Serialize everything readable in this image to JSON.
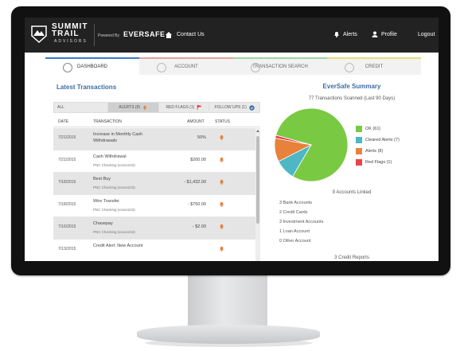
{
  "header": {
    "logo_line1": "SUMMIT",
    "logo_line2": "TRAIL",
    "logo_line3": "ADVISORS",
    "powered_by": "Powered By",
    "brand": "EVERSAFE",
    "contact_us": "Contact Us",
    "alerts": "Alerts",
    "profile": "Profile",
    "logout": "Logout"
  },
  "tabs": [
    {
      "label": "DASHBOARD",
      "icon": "dashboard-icon",
      "active": true
    },
    {
      "label": "ACCOUNT",
      "icon": "account-icon",
      "active": false
    },
    {
      "label": "TRANSACTION SEARCH",
      "icon": "search-icon",
      "active": false
    },
    {
      "label": "CREDIT",
      "icon": "credit-icon",
      "active": false
    }
  ],
  "transactions": {
    "title": "Latest Transactions",
    "filters": {
      "all": "ALL",
      "alerts": "ALERTS (8)",
      "red_flags": "RED FLAGS (1)",
      "follow_ups": "FOLLOW UPS (1)"
    },
    "columns": {
      "date": "DATE",
      "transaction": "TRANSACTION",
      "amount": "AMOUNT",
      "status": "STATUS"
    },
    "rows": [
      {
        "date": "7/21/2015",
        "line1": "Increase in Monthly Cash",
        "line2": "Withdrawals",
        "sub": "",
        "amount": "50%"
      },
      {
        "date": "7/21/2015",
        "line1": "Cash Withdrawal",
        "line2": "",
        "sub": "PNC Checking (xxxx1243)",
        "amount": "$200.00"
      },
      {
        "date": "7/18/2015",
        "line1": "Best Buy",
        "line2": "",
        "sub": "PNC Checking (xxxx1243)",
        "amount": "- $1,432.00"
      },
      {
        "date": "7/18/2015",
        "line1": "Wire Transfer",
        "line2": "",
        "sub": "PNC Checking (xxxx1243)",
        "amount": "- $750.00"
      },
      {
        "date": "7/16/2015",
        "line1": "Chasepay",
        "line2": "",
        "sub": "PNC Checking (xxxx1243)",
        "amount": "- $2.00"
      },
      {
        "date": "7/13/2015",
        "line1": "Credit Alert: New Account",
        "line2": "",
        "sub": "",
        "amount": ""
      }
    ]
  },
  "summary": {
    "title": "EverSafe Summary",
    "scanned": "77 Transactions Scanned (Last 90 Days)",
    "legend": [
      {
        "label": "OK (61)",
        "value": 61,
        "color": "#7ac943"
      },
      {
        "label": "Cleared Alerts (7)",
        "value": 7,
        "color": "#4db7c4"
      },
      {
        "label": "Alerts (8)",
        "value": 8,
        "color": "#e8823a"
      },
      {
        "label": "Red Flags (1)",
        "value": 1,
        "color": "#e8434a"
      }
    ],
    "linked": "9 Accounts Linked",
    "accounts": [
      "3 Bank Accounts",
      "2 Credit Cards",
      "3 Investment Accounts",
      "1 Loan Account",
      "0 Other Account"
    ],
    "credit_reports": "3 Credit Reports"
  },
  "colors": {
    "topbar": "#222222",
    "accent": "#3d6ea5",
    "alert_icon": "#e8823a"
  }
}
